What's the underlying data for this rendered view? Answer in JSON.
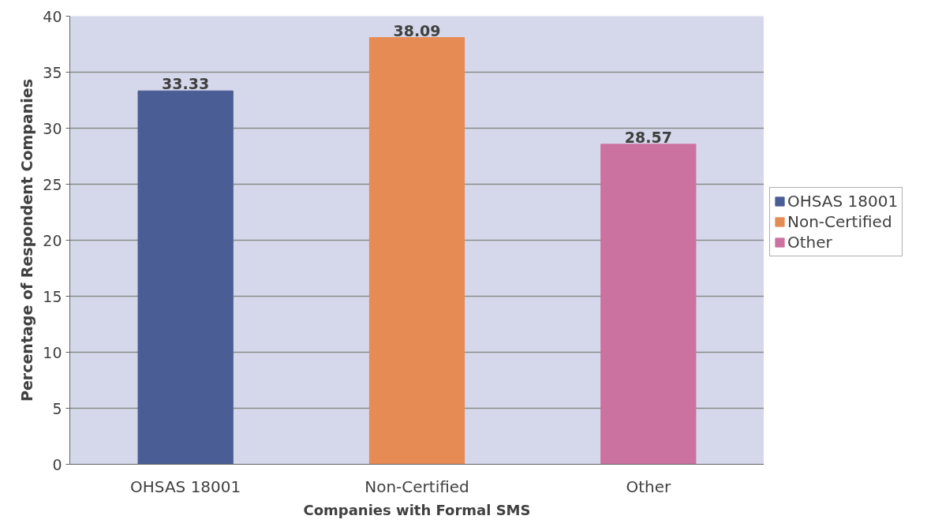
{
  "chart_data": {
    "type": "bar",
    "xlabel": "Companies with Formal SMS",
    "ylabel": "Percentage of Respondent Companies",
    "categories": [
      "OHSAS 18001",
      "Non-Certified",
      "Other"
    ],
    "series": [
      {
        "name": "OHSAS 18001",
        "color": "#4a5d94",
        "values": [
          33.33,
          null,
          null
        ]
      },
      {
        "name": "Non-Certified",
        "color": "#e78b55",
        "values": [
          null,
          38.09,
          null
        ]
      },
      {
        "name": "Other",
        "color": "#cc72a0",
        "values": [
          null,
          null,
          28.57
        ]
      }
    ],
    "ylim": [
      0,
      40
    ],
    "yticks": [
      0,
      5,
      10,
      15,
      20,
      25,
      30,
      35,
      40
    ],
    "grid": "y",
    "legend": "right",
    "data_labels": true
  }
}
